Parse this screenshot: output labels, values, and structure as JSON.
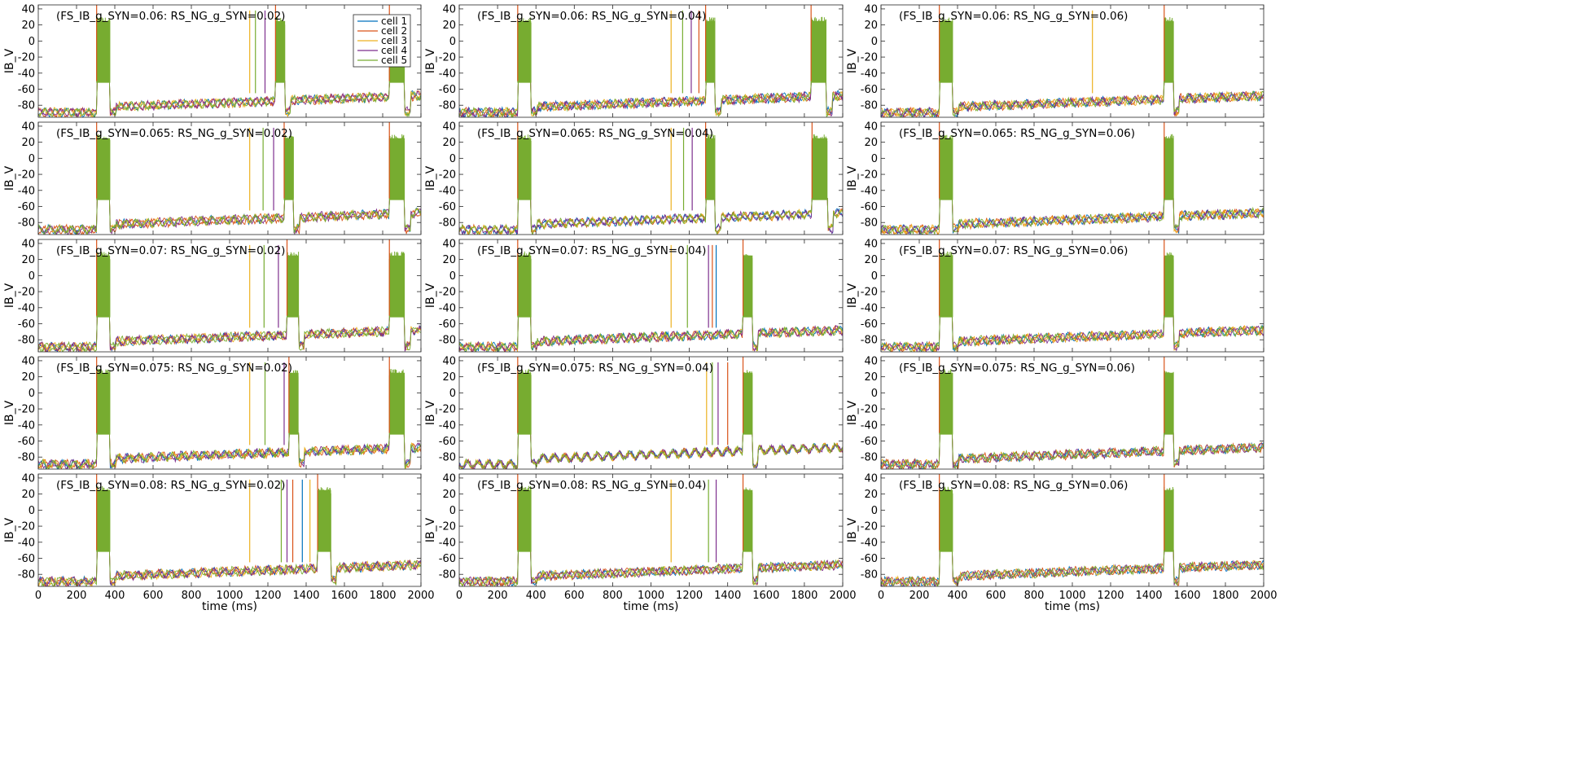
{
  "chart_data": {
    "type": "line",
    "grid": false,
    "layout": {
      "rows": 5,
      "cols": 3
    },
    "xlim": [
      0,
      2000
    ],
    "ylim": [
      -95,
      45
    ],
    "xticks": [
      0,
      200,
      400,
      600,
      800,
      1000,
      1200,
      1400,
      1600,
      1800,
      2000
    ],
    "xtick_labels": [
      "0",
      "200",
      "400",
      "600",
      "800",
      "1000",
      "1200",
      "1400",
      "1600",
      "1800",
      "2000"
    ],
    "yticks": [
      40,
      20,
      0,
      -20,
      -40,
      -60,
      -80
    ],
    "ytick_labels": [
      "40",
      "20",
      "0",
      "-20",
      "-40",
      "-60",
      "-80"
    ],
    "xlabel": "time (ms)",
    "ylabel": "IB_V",
    "legend": {
      "placement": "top-right of first panel",
      "entries": [
        {
          "name": "cell 1",
          "color": "#0072BD"
        },
        {
          "name": "cell 2",
          "color": "#D95319"
        },
        {
          "name": "cell 3",
          "color": "#EDB120"
        },
        {
          "name": "cell 4",
          "color": "#7E2F8E"
        },
        {
          "name": "cell 5",
          "color": "#77AC30"
        }
      ]
    },
    "panels": [
      {
        "title": "(FS_IB_g_SYN=0.06: RS_NG_g_SYN=0.02)",
        "bursts": [
          [
            305,
            375
          ],
          [
            1240,
            1290
          ],
          [
            1835,
            1915
          ]
        ],
        "spikes": [
          1105,
          1135,
          1185
        ]
      },
      {
        "title": "(FS_IB_g_SYN=0.06: RS_NG_g_SYN=0.04)",
        "bursts": [
          [
            305,
            375
          ],
          [
            1285,
            1335
          ],
          [
            1835,
            1915
          ]
        ],
        "spikes": [
          1105,
          1165,
          1210,
          1250
        ]
      },
      {
        "title": "(FS_IB_g_SYN=0.06: RS_NG_g_SYN=0.06)",
        "bursts": [
          [
            305,
            375
          ],
          [
            1480,
            1530
          ]
        ],
        "spikes": [
          1105
        ]
      },
      {
        "title": "(FS_IB_g_SYN=0.065: RS_NG_g_SYN=0.02)",
        "bursts": [
          [
            305,
            375
          ],
          [
            1285,
            1335
          ],
          [
            1835,
            1915
          ]
        ],
        "spikes": [
          1105,
          1175,
          1230
        ]
      },
      {
        "title": "(FS_IB_g_SYN=0.065: RS_NG_g_SYN=0.04)",
        "bursts": [
          [
            305,
            375
          ],
          [
            1285,
            1335
          ],
          [
            1840,
            1920
          ]
        ],
        "spikes": [
          1105,
          1170,
          1215
        ]
      },
      {
        "title": "(FS_IB_g_SYN=0.065: RS_NG_g_SYN=0.06)",
        "bursts": [
          [
            305,
            375
          ],
          [
            1480,
            1530
          ]
        ],
        "spikes": []
      },
      {
        "title": "(FS_IB_g_SYN=0.07: RS_NG_g_SYN=0.02)",
        "bursts": [
          [
            305,
            375
          ],
          [
            1300,
            1360
          ],
          [
            1835,
            1915
          ]
        ],
        "spikes": [
          1105,
          1180,
          1255
        ]
      },
      {
        "title": "(FS_IB_g_SYN=0.07: RS_NG_g_SYN=0.04)",
        "bursts": [
          [
            305,
            375
          ],
          [
            1480,
            1530
          ]
        ],
        "spikes": [
          1105,
          1190,
          1300,
          1320,
          1340
        ]
      },
      {
        "title": "(FS_IB_g_SYN=0.07: RS_NG_g_SYN=0.06)",
        "bursts": [
          [
            305,
            375
          ],
          [
            1480,
            1530
          ]
        ],
        "spikes": []
      },
      {
        "title": "(FS_IB_g_SYN=0.075: RS_NG_g_SYN=0.02)",
        "bursts": [
          [
            305,
            375
          ],
          [
            1310,
            1360
          ],
          [
            1835,
            1915
          ]
        ],
        "spikes": [
          1105,
          1185,
          1285
        ]
      },
      {
        "title": "(FS_IB_g_SYN=0.075: RS_NG_g_SYN=0.04)",
        "bursts": [
          [
            305,
            375
          ],
          [
            1480,
            1530
          ]
        ],
        "spikes": [
          1290,
          1320,
          1350,
          1400
        ]
      },
      {
        "title": "(FS_IB_g_SYN=0.075: RS_NG_g_SYN=0.06)",
        "bursts": [
          [
            305,
            375
          ],
          [
            1480,
            1530
          ]
        ],
        "spikes": []
      },
      {
        "title": "(FS_IB_g_SYN=0.08: RS_NG_g_SYN=0.02)",
        "bursts": [
          [
            305,
            375
          ],
          [
            1460,
            1530
          ]
        ],
        "spikes": [
          1105,
          1270,
          1300,
          1330,
          1380,
          1420
        ]
      },
      {
        "title": "(FS_IB_g_SYN=0.08: RS_NG_g_SYN=0.04)",
        "bursts": [
          [
            305,
            375
          ],
          [
            1480,
            1530
          ]
        ],
        "spikes": [
          1105,
          1300,
          1340
        ]
      },
      {
        "title": "(FS_IB_g_SYN=0.08: RS_NG_g_SYN=0.06)",
        "bursts": [
          [
            305,
            375
          ],
          [
            1480,
            1530
          ]
        ],
        "spikes": []
      }
    ]
  }
}
